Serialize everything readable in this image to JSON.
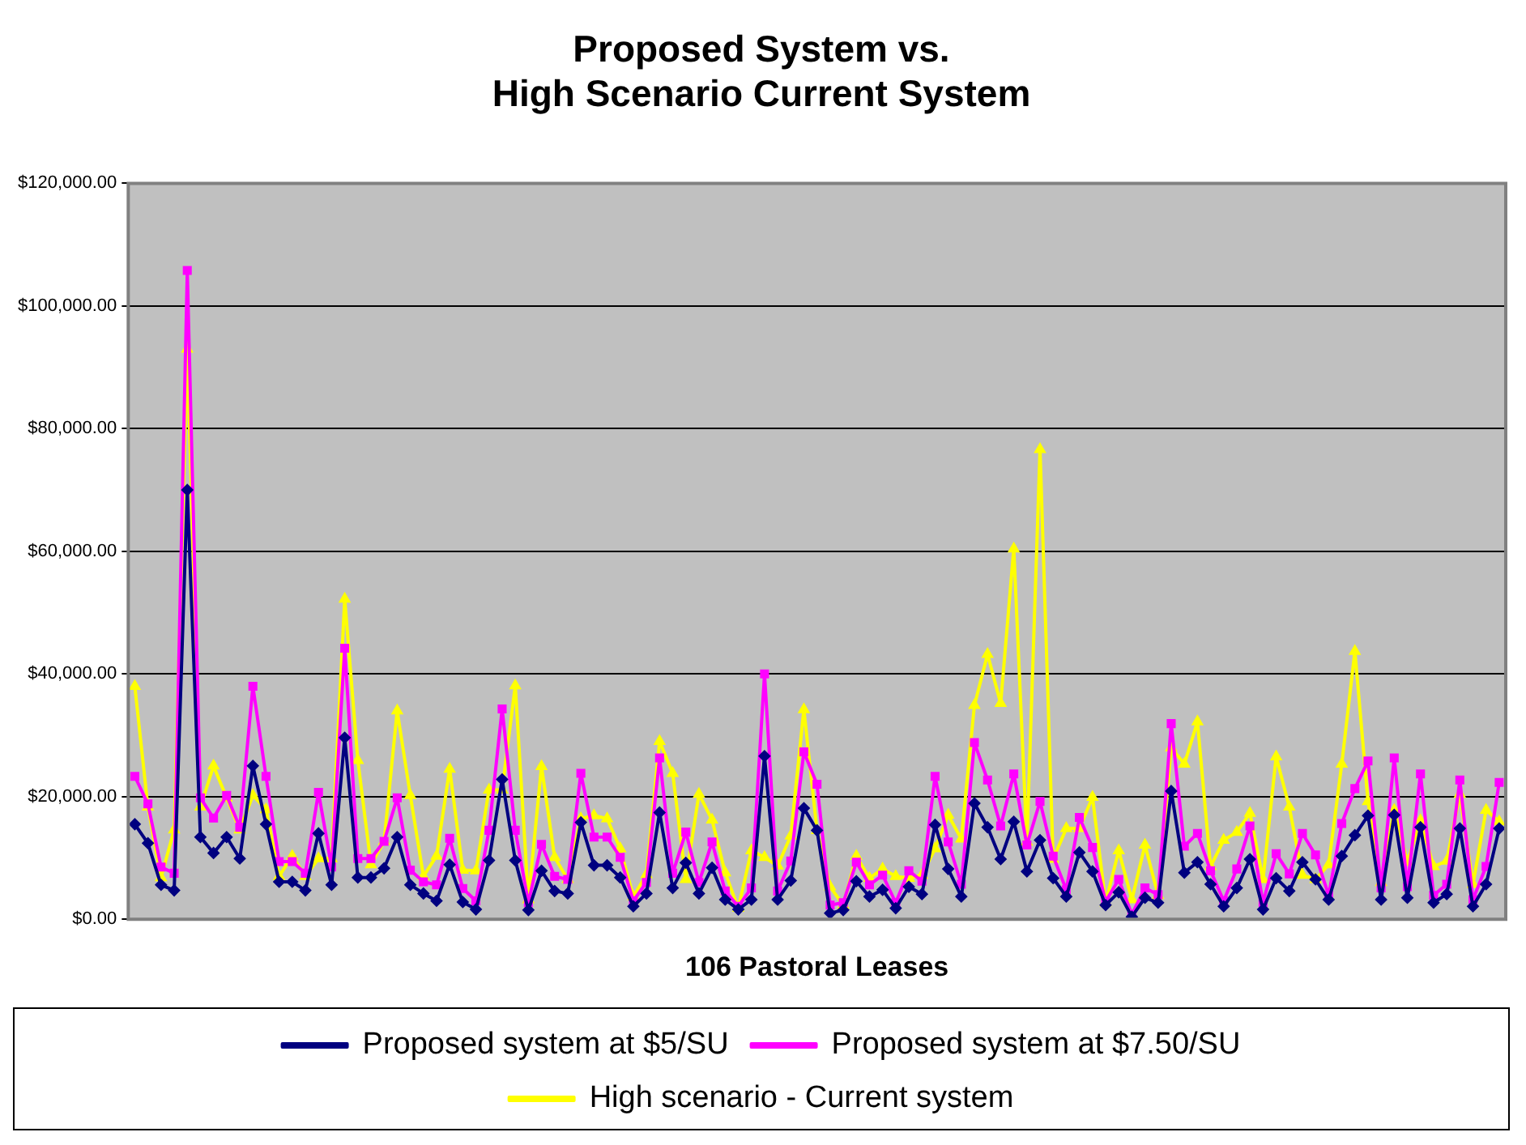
{
  "chart_data": {
    "type": "line",
    "title": "Proposed System vs.\nHigh Scenario Current System",
    "xlabel": "106 Pastoral Leases",
    "categories": [
      null,
      null,
      null,
      null,
      null,
      null,
      null,
      null,
      null,
      null,
      null,
      null,
      null,
      null,
      null,
      null,
      null,
      null,
      null,
      null,
      null,
      null,
      null,
      null,
      null,
      null,
      null,
      null,
      null,
      null,
      null,
      null,
      null,
      null,
      null,
      null,
      null,
      null,
      null,
      null,
      null,
      null,
      null,
      null,
      null,
      null,
      null,
      null,
      null,
      null,
      null,
      null,
      null,
      null,
      null,
      null,
      null,
      null,
      null,
      null,
      null,
      null,
      null,
      null,
      null,
      null,
      null,
      null,
      null,
      null,
      null,
      null,
      null,
      null,
      null,
      null,
      null,
      null,
      null,
      null,
      null,
      null,
      null,
      null,
      null,
      null,
      null,
      null,
      null,
      null,
      null,
      null,
      null,
      null,
      null,
      null,
      null,
      null,
      null,
      null,
      null,
      null,
      null,
      null,
      null
    ],
    "series": [
      {
        "name": "Proposed system at $5/SU",
        "color": "#000080",
        "marker": "diamond",
        "values": [
          15500,
          12400,
          5600,
          4700,
          70000,
          13400,
          10800,
          13400,
          9900,
          25000,
          15500,
          6100,
          6100,
          4700,
          14000,
          5600,
          29600,
          6800,
          6800,
          8300,
          13400,
          5600,
          4200,
          3000,
          8900,
          2800,
          1600,
          9600,
          22800,
          9600,
          1500,
          7900,
          4600,
          4200,
          15800,
          8800,
          8800,
          6800,
          2100,
          4200,
          17400,
          5100,
          9200,
          4200,
          8400,
          3200,
          1600,
          3200,
          26600,
          3200,
          6300,
          18100,
          14500,
          1000,
          1500,
          6200,
          3700,
          4800,
          1800,
          5300,
          4100,
          15400,
          8200,
          3700,
          18900,
          15000,
          9800,
          15900,
          7800,
          12900,
          6700,
          3700,
          10900,
          7800,
          2300,
          4400,
          400,
          3500,
          2700,
          20900,
          7600,
          9300,
          5700,
          2100,
          5100,
          9800,
          1600,
          6700,
          4600,
          9300,
          6500,
          3200,
          10300,
          13700,
          16900,
          3200,
          17000,
          3500,
          15000,
          2700,
          4100,
          14800,
          2100,
          5700,
          14800
        ]
      },
      {
        "name": "Proposed system at $7.50/SU",
        "color": "#ff00ff",
        "marker": "square",
        "values": [
          23300,
          18800,
          8500,
          7500,
          105800,
          19800,
          16500,
          20200,
          15000,
          38000,
          23300,
          9400,
          9400,
          7500,
          20700,
          8500,
          44200,
          9900,
          9900,
          12700,
          19800,
          8000,
          6100,
          5600,
          13200,
          5000,
          3000,
          14500,
          34300,
          14500,
          2700,
          12200,
          7000,
          6500,
          23800,
          13400,
          13400,
          10100,
          3000,
          6000,
          26300,
          7500,
          14200,
          6000,
          12600,
          4600,
          2100,
          5100,
          40000,
          4600,
          9500,
          27300,
          22000,
          2300,
          2700,
          9300,
          5600,
          7200,
          2700,
          7900,
          6200,
          23300,
          12600,
          5700,
          28800,
          22700,
          15200,
          23700,
          12100,
          19200,
          10300,
          4800,
          16600,
          11700,
          2900,
          6500,
          800,
          5100,
          4000,
          31900,
          11900,
          14000,
          7900,
          3000,
          8200,
          15200,
          2700,
          10700,
          7400,
          14000,
          10500,
          3900,
          15600,
          21300,
          25800,
          5100,
          26300,
          5300,
          23700,
          3900,
          5700,
          22700,
          3200,
          8600,
          22300
        ]
      },
      {
        "name": "High scenario - Current system",
        "color": "#ffff00",
        "marker": "triangle",
        "values": [
          38000,
          18300,
          6800,
          14600,
          93000,
          18300,
          25000,
          19800,
          14600,
          20200,
          17900,
          7000,
          10300,
          7000,
          9900,
          9900,
          52200,
          25900,
          8900,
          12700,
          34000,
          20200,
          7000,
          10300,
          24500,
          8000,
          7900,
          21100,
          21100,
          38100,
          3200,
          24900,
          10100,
          6500,
          16400,
          16900,
          16400,
          11500,
          3700,
          7300,
          29000,
          23800,
          6500,
          20400,
          16200,
          7600,
          1800,
          11200,
          10100,
          8700,
          13600,
          34200,
          14500,
          5300,
          2300,
          10300,
          6700,
          8200,
          7000,
          6700,
          7200,
          11500,
          17000,
          13100,
          34900,
          43200,
          35200,
          60400,
          12600,
          76600,
          9800,
          14800,
          14800,
          19900,
          2700,
          11200,
          3200,
          12100,
          3900,
          28000,
          25300,
          32200,
          8600,
          12900,
          14200,
          17300,
          6500,
          26500,
          18300,
          7200,
          6500,
          8900,
          25300,
          43700,
          19200,
          6000,
          17800,
          9300,
          16100,
          8600,
          9500,
          20400,
          5700,
          17800,
          15900
        ]
      }
    ],
    "ylim": [
      0,
      120000
    ],
    "yticks": [
      {
        "value": 0,
        "label": "$0.00"
      },
      {
        "value": 20000,
        "label": "$20,000.00"
      },
      {
        "value": 40000,
        "label": "$40,000.00"
      },
      {
        "value": 60000,
        "label": "$60,000.00"
      },
      {
        "value": 80000,
        "label": "$80,000.00"
      },
      {
        "value": 100000,
        "label": "$100,000.00"
      },
      {
        "value": 120000,
        "label": "$120,000.00"
      }
    ],
    "grid": "y",
    "legend": "bottom",
    "tick_labels": "y",
    "line_style": "solid"
  }
}
